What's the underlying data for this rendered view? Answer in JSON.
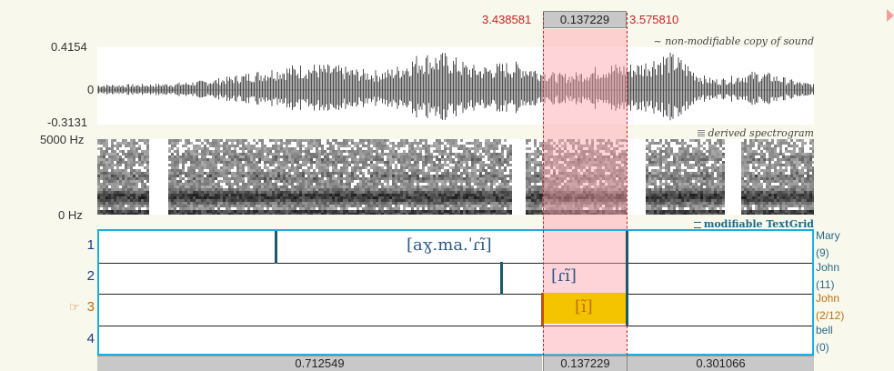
{
  "selection": {
    "start": "3.438581",
    "duration": "0.137229",
    "end": "3.575810"
  },
  "waveform": {
    "max_label": "0.4154",
    "zero_label": "0",
    "min_label": "-0.3131",
    "annotation": "~ non-modifiable copy of sound"
  },
  "spectrogram": {
    "top_label": "5000 Hz",
    "bottom_label": "0 Hz",
    "annotation": "derived spectrogram"
  },
  "textgrid": {
    "annotation": "modifiable TextGrid",
    "tiers": [
      {
        "number": "1",
        "name": "Mary",
        "count": "(9)"
      },
      {
        "number": "2",
        "name": "John",
        "count": "(11)"
      },
      {
        "number": "3",
        "name": "John",
        "count": "(2/12)",
        "selected": true,
        "pointer": "☞"
      },
      {
        "number": "4",
        "name": "bell",
        "count": "(0)"
      }
    ],
    "labels": {
      "tier1": "[aɣ.ma.ˈɾĩ]",
      "tier2": "[ɾĩ]",
      "tier3": "[ĩ]"
    }
  },
  "bottom_bar": {
    "left": "0.712549",
    "middle": "0.137229",
    "right": "0.301066"
  },
  "colors": {
    "selection": "#ffa0aa",
    "accent_cyan": "#1ab0e0",
    "highlight_interval": "#f5c400",
    "red_text": "#d02020"
  }
}
